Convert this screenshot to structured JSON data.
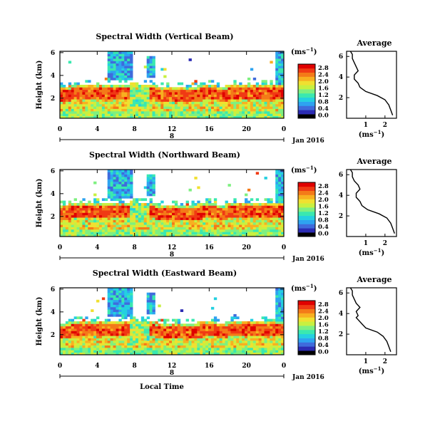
{
  "panels": [
    {
      "title": "Spectral Width (Vertical Beam)",
      "avg_title": "Average"
    },
    {
      "title": "Spectral Width (Northward Beam)",
      "avg_title": "Average"
    },
    {
      "title": "Spectral Width (Eastward Beam)",
      "avg_title": "Average"
    }
  ],
  "colorbar": {
    "unit": "(ms",
    "unit_sup": "−1",
    "unit_close": ")",
    "ticks": [
      "0.0",
      "0.4",
      "0.8",
      "1.2",
      "1.6",
      "2.0",
      "2.4",
      "2.8"
    ],
    "colors": [
      "#000000",
      "#2c2cb4",
      "#3f6bdc",
      "#2ea3f0",
      "#24d0e0",
      "#3ae8b0",
      "#7ef080",
      "#c8f040",
      "#f0e030",
      "#f8b020",
      "#f47a18",
      "#f03a14",
      "#e00000"
    ]
  },
  "x_axis": {
    "ticks": [
      "0",
      "4",
      "8",
      "12",
      "16",
      "20",
      "0"
    ],
    "date_label": "Jan 2016",
    "marker_label": "8",
    "xlabel": "Local Time"
  },
  "y_axis": {
    "label": "Height (km)",
    "ticks": [
      "2",
      "4",
      "6"
    ]
  },
  "avg_x": {
    "ticks": [
      "1",
      "2"
    ],
    "label": "(ms",
    "label_sup": "−1",
    "label_close": ")"
  },
  "avg_y_ticks": [
    "2",
    "4",
    "6"
  ],
  "chart_data": [
    {
      "type": "heatmap",
      "title": "Spectral Width (Vertical Beam)",
      "xlabel": "",
      "ylabel": "Height (km)",
      "x_range": [
        0,
        24
      ],
      "y_range": [
        0,
        6.5
      ],
      "z_range": [
        0,
        2.8
      ],
      "z_unit": "ms-1",
      "average_profile": {
        "x": [
          2.4,
          2.3,
          2.2,
          2.0,
          1.6,
          1.0,
          0.7,
          0.6,
          0.5,
          0.4,
          0.4,
          0.6,
          0.5,
          0.4,
          0.3,
          0.3,
          0.2
        ],
        "height": [
          0.3,
          0.8,
          1.3,
          1.8,
          2.2,
          2.6,
          3.0,
          3.4,
          3.6,
          3.8,
          4.2,
          4.6,
          5.0,
          5.4,
          5.8,
          6.2,
          6.5
        ],
        "xlim": [
          0,
          2.6
        ],
        "ylim": [
          0,
          6.5
        ]
      }
    },
    {
      "type": "heatmap",
      "title": "Spectral Width (Northward Beam)",
      "xlabel": "",
      "ylabel": "Height (km)",
      "x_range": [
        0,
        24
      ],
      "y_range": [
        0,
        6.5
      ],
      "z_range": [
        0,
        2.8
      ],
      "z_unit": "ms-1",
      "average_profile": {
        "x": [
          2.5,
          2.4,
          2.3,
          2.1,
          1.7,
          1.1,
          0.8,
          0.7,
          0.6,
          0.5,
          0.5,
          0.7,
          0.6,
          0.4,
          0.3,
          0.3,
          0.2
        ],
        "height": [
          0.3,
          0.8,
          1.3,
          1.8,
          2.2,
          2.6,
          3.0,
          3.4,
          3.6,
          3.8,
          4.2,
          4.6,
          5.0,
          5.4,
          5.8,
          6.2,
          6.5
        ],
        "xlim": [
          0,
          2.6
        ],
        "ylim": [
          0,
          6.5
        ]
      }
    },
    {
      "type": "heatmap",
      "title": "Spectral Width (Eastward Beam)",
      "xlabel": "Local Time",
      "ylabel": "Height (km)",
      "x_range": [
        0,
        24
      ],
      "y_range": [
        0,
        6.5
      ],
      "z_range": [
        0,
        2.8
      ],
      "z_unit": "ms-1",
      "average_profile": {
        "x": [
          2.3,
          2.2,
          2.1,
          1.9,
          1.6,
          1.0,
          0.8,
          0.6,
          0.5,
          0.6,
          0.5,
          0.7,
          0.5,
          0.4,
          0.3,
          0.3,
          0.2
        ],
        "height": [
          0.3,
          0.8,
          1.3,
          1.8,
          2.2,
          2.6,
          3.0,
          3.4,
          3.6,
          3.8,
          4.2,
          4.6,
          5.0,
          5.4,
          5.8,
          6.2,
          6.5
        ],
        "xlim": [
          0,
          2.6
        ],
        "ylim": [
          0,
          6.5
        ]
      }
    }
  ]
}
